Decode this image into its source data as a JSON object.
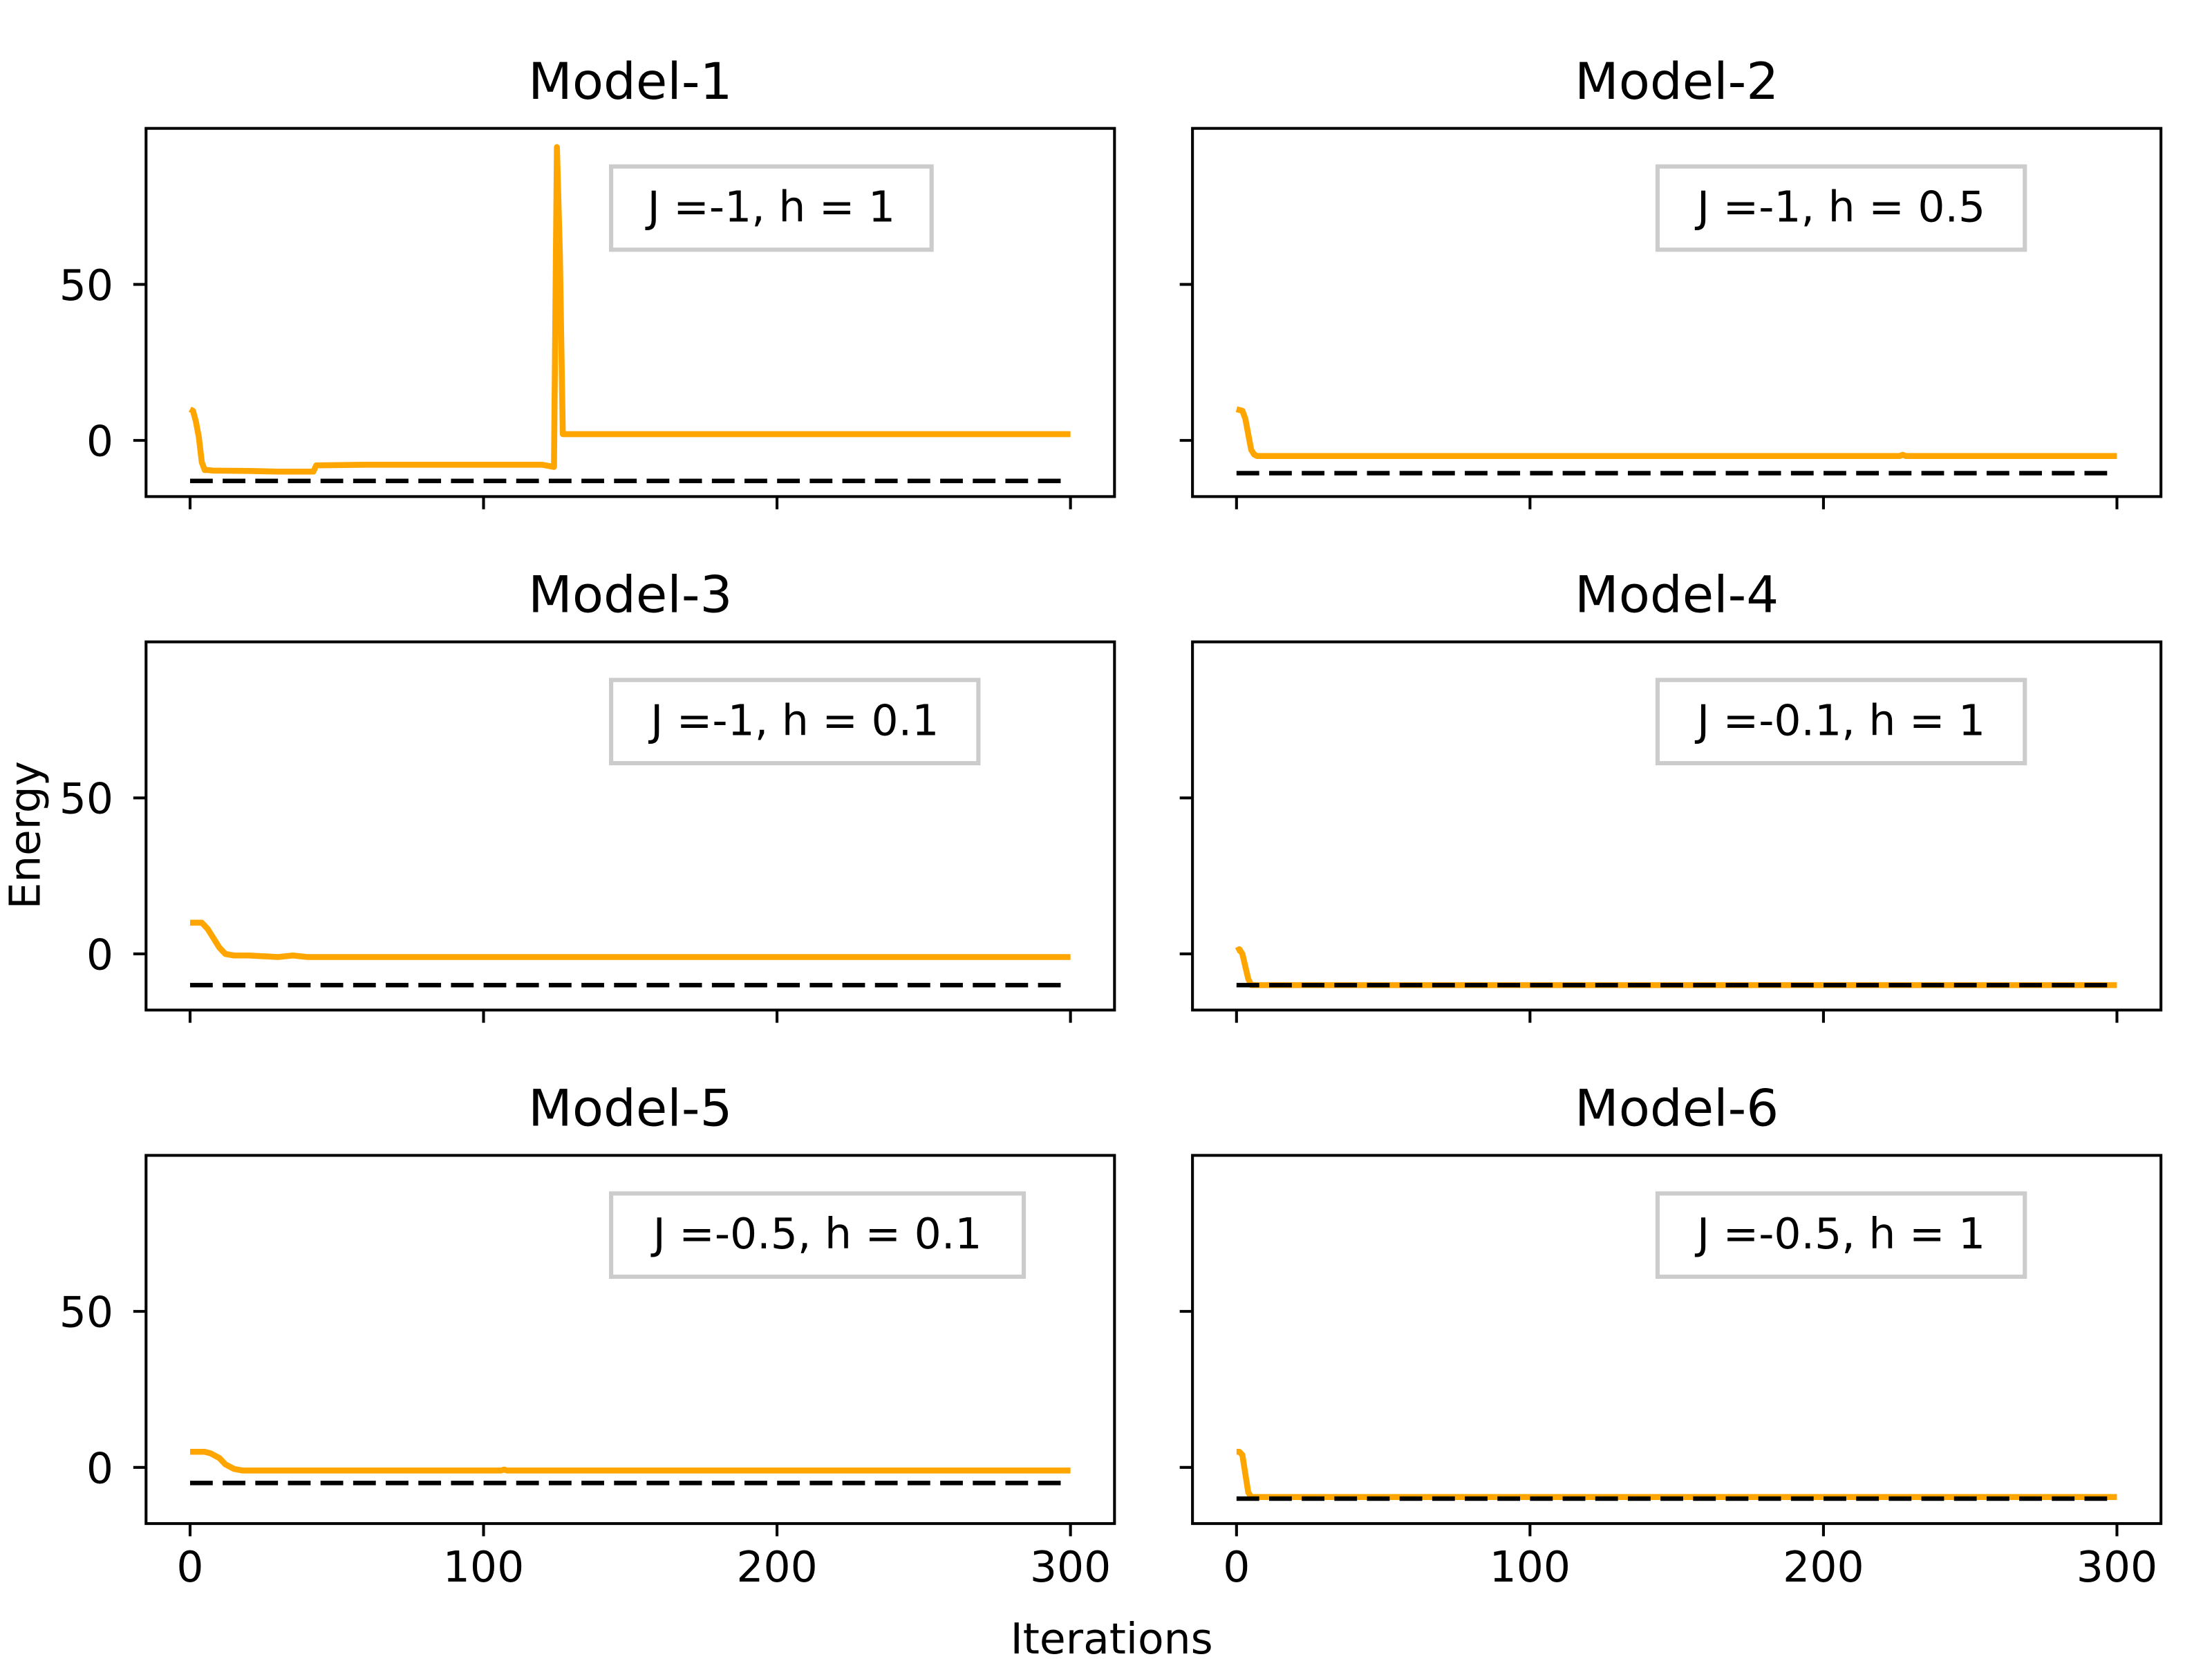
{
  "figure": {
    "xlabel": "Iterations",
    "ylabel": "Energy"
  },
  "colors": {
    "energy_line": "#ffa500",
    "ground_state_line": "#000000",
    "legend_border": "#cccccc"
  },
  "chart_data": [
    {
      "type": "line",
      "title": "Model-1",
      "annotation": "J =-1, h = 1",
      "xlim": [
        -15,
        315
      ],
      "ylim": [
        -18,
        100
      ],
      "xticks": [
        0,
        100,
        200,
        300
      ],
      "yticks": [
        0,
        50
      ],
      "show_xtick_labels": false,
      "show_ytick_labels": true,
      "series": [
        {
          "style": "solid",
          "x": [
            0,
            1,
            2,
            3,
            4,
            5,
            6,
            8,
            10,
            20,
            30,
            42,
            43,
            60,
            80,
            100,
            110,
            120,
            124,
            125,
            126,
            127,
            130,
            160,
            200,
            250,
            300
          ],
          "y": [
            10,
            9.5,
            6,
            1,
            -7,
            -9.5,
            -9.5,
            -9.7,
            -9.7,
            -9.8,
            -10,
            -10,
            -8,
            -7.8,
            -7.8,
            -7.8,
            -7.8,
            -7.8,
            -8.5,
            94,
            60,
            2,
            2,
            2,
            2,
            2,
            2
          ]
        },
        {
          "style": "dashed",
          "x": [
            0,
            300
          ],
          "y": [
            -13,
            -13
          ]
        }
      ]
    },
    {
      "type": "line",
      "title": "Model-2",
      "annotation": "J =-1, h = 0.5",
      "xlim": [
        -15,
        315
      ],
      "ylim": [
        -18,
        100
      ],
      "xticks": [
        0,
        100,
        200,
        300
      ],
      "yticks": [
        0,
        50
      ],
      "show_xtick_labels": false,
      "show_ytick_labels": false,
      "series": [
        {
          "style": "solid",
          "x": [
            0,
            2,
            3,
            4,
            5,
            6,
            7,
            10,
            30,
            100,
            226,
            227,
            228,
            300
          ],
          "y": [
            10,
            9.5,
            7,
            2,
            -3,
            -4.5,
            -5,
            -5,
            -5,
            -5,
            -5,
            -4.6,
            -5,
            -5
          ]
        },
        {
          "style": "dashed",
          "x": [
            0,
            300
          ],
          "y": [
            -10.5,
            -10.5
          ]
        }
      ]
    },
    {
      "type": "line",
      "title": "Model-3",
      "annotation": "J =-1, h = 0.1",
      "xlim": [
        -15,
        315
      ],
      "ylim": [
        -18,
        100
      ],
      "xticks": [
        0,
        100,
        200,
        300
      ],
      "yticks": [
        0,
        50
      ],
      "show_xtick_labels": false,
      "show_ytick_labels": true,
      "series": [
        {
          "style": "solid",
          "x": [
            0,
            4,
            6,
            8,
            10,
            12,
            15,
            20,
            30,
            35,
            40,
            100,
            300
          ],
          "y": [
            10,
            10,
            8,
            5,
            2,
            0,
            -0.5,
            -0.5,
            -1,
            -0.5,
            -1,
            -1,
            -1
          ]
        },
        {
          "style": "dashed",
          "x": [
            0,
            300
          ],
          "y": [
            -10,
            -10
          ]
        }
      ]
    },
    {
      "type": "line",
      "title": "Model-4",
      "annotation": "J =-0.1, h = 1",
      "xlim": [
        -15,
        315
      ],
      "ylim": [
        -18,
        100
      ],
      "xticks": [
        0,
        100,
        200,
        300
      ],
      "yticks": [
        0,
        50
      ],
      "show_xtick_labels": false,
      "show_ytick_labels": false,
      "series": [
        {
          "style": "solid",
          "x": [
            0,
            1,
            2,
            3,
            4,
            5,
            6,
            10,
            100,
            200,
            300
          ],
          "y": [
            1,
            1.5,
            0,
            -4,
            -8,
            -10,
            -10,
            -10,
            -10,
            -10,
            -10
          ]
        },
        {
          "style": "dashed",
          "x": [
            0,
            300
          ],
          "y": [
            -10,
            -10
          ]
        }
      ]
    },
    {
      "type": "line",
      "title": "Model-5",
      "annotation": "J =-0.5, h = 0.1",
      "xlim": [
        -15,
        315
      ],
      "ylim": [
        -18,
        100
      ],
      "xticks": [
        0,
        100,
        200,
        300
      ],
      "yticks": [
        0,
        50
      ],
      "show_xtick_labels": true,
      "show_ytick_labels": true,
      "series": [
        {
          "style": "solid",
          "x": [
            0,
            5,
            7,
            10,
            12,
            15,
            18,
            20,
            30,
            60,
            106,
            107,
            108,
            300
          ],
          "y": [
            5,
            5,
            4.5,
            3,
            1,
            -0.5,
            -1,
            -1,
            -1,
            -1,
            -1,
            -0.7,
            -1,
            -1
          ]
        },
        {
          "style": "dashed",
          "x": [
            0,
            300
          ],
          "y": [
            -5,
            -5
          ]
        }
      ]
    },
    {
      "type": "line",
      "title": "Model-6",
      "annotation": "J =-0.5, h = 1",
      "xlim": [
        -15,
        315
      ],
      "ylim": [
        -18,
        100
      ],
      "xticks": [
        0,
        100,
        200,
        300
      ],
      "yticks": [
        0,
        50
      ],
      "show_xtick_labels": true,
      "show_ytick_labels": false,
      "series": [
        {
          "style": "solid",
          "x": [
            0,
            1,
            2,
            3,
            4,
            5,
            6,
            10,
            100,
            200,
            300
          ],
          "y": [
            5,
            5,
            4,
            -2,
            -8,
            -9.5,
            -9.5,
            -9.5,
            -9.5,
            -9.5,
            -9.5
          ]
        },
        {
          "style": "dashed",
          "x": [
            0,
            300
          ],
          "y": [
            -10,
            -10
          ]
        }
      ]
    }
  ]
}
